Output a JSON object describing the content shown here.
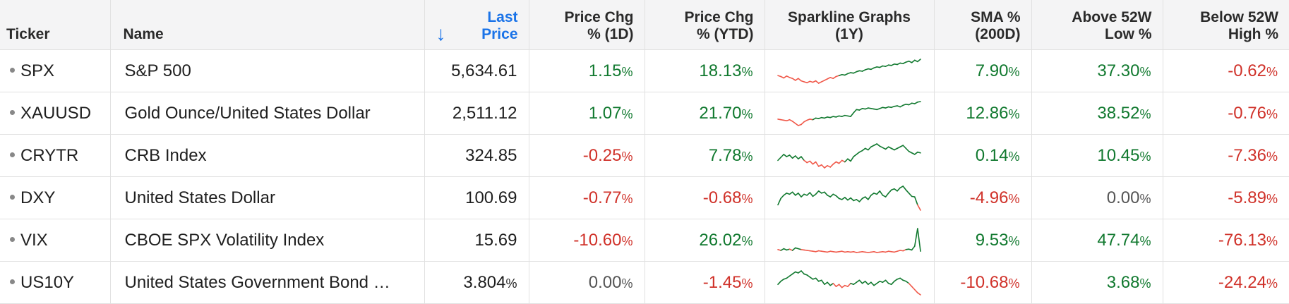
{
  "columns": [
    {
      "key": "ticker",
      "label": "Ticker"
    },
    {
      "key": "name",
      "label": "Name"
    },
    {
      "key": "last",
      "label_line1": "Last",
      "label_line2": "Price",
      "sort_icon": "arrow-down-icon"
    },
    {
      "key": "chg1d",
      "label_line1": "Price Chg",
      "label_line2": "% (1D)"
    },
    {
      "key": "chgytd",
      "label_line1": "Price Chg",
      "label_line2": "% (YTD)"
    },
    {
      "key": "spark",
      "label_line1": "Sparkline Graphs",
      "label_line2": "(1Y)"
    },
    {
      "key": "sma",
      "label_line1": "SMA %",
      "label_line2": "(200D)"
    },
    {
      "key": "above",
      "label_line1": "Above 52W",
      "label_line2": "Low %"
    },
    {
      "key": "below",
      "label_line1": "Below 52W",
      "label_line2": "High %"
    }
  ],
  "percent_sign": "%",
  "colors": {
    "positive": "#11792f",
    "negative": "#d0322a",
    "neutral": "#555555",
    "sort_accent": "#1a73e8"
  },
  "rows": [
    {
      "ticker": "SPX",
      "name": "S&P 500",
      "last": "5,634.61",
      "last_pct": false,
      "chg1d": "1.15",
      "chg1d_tone": "pos",
      "chgytd": "18.13",
      "chgytd_tone": "pos",
      "sma": "7.90",
      "sma_tone": "pos",
      "above": "37.30",
      "above_tone": "pos",
      "below": "-0.62",
      "below_tone": "neg",
      "spark": [
        40,
        38,
        35,
        39,
        36,
        34,
        30,
        34,
        29,
        27,
        25,
        28,
        26,
        29,
        24,
        27,
        30,
        33,
        36,
        34,
        38,
        40,
        42,
        41,
        44,
        46,
        45,
        48,
        50,
        49,
        52,
        54,
        53,
        56,
        58,
        57,
        60,
        59,
        62,
        61,
        64,
        63,
        66,
        65,
        68,
        70,
        67,
        72,
        69,
        74
      ]
    },
    {
      "ticker": "XAUUSD",
      "name": "Gold Ounce/United States Dollar",
      "last": "2,511.12",
      "last_pct": false,
      "chg1d": "1.07",
      "chg1d_tone": "pos",
      "chgytd": "21.70",
      "chgytd_tone": "pos",
      "sma": "12.86",
      "sma_tone": "pos",
      "above": "38.52",
      "above_tone": "pos",
      "below": "-0.76",
      "below_tone": "neg",
      "spark": [
        38,
        37,
        36,
        35,
        37,
        34,
        30,
        26,
        28,
        33,
        36,
        38,
        37,
        40,
        39,
        41,
        40,
        42,
        41,
        43,
        42,
        44,
        43,
        45,
        44,
        43,
        50,
        56,
        55,
        58,
        57,
        59,
        58,
        57,
        56,
        58,
        60,
        59,
        61,
        60,
        62,
        63,
        61,
        64,
        66,
        65,
        68,
        67,
        70,
        71
      ]
    },
    {
      "ticker": "CRYTR",
      "name": "CRB Index",
      "last": "324.85",
      "last_pct": false,
      "chg1d": "-0.25",
      "chg1d_tone": "neg",
      "chgytd": "7.78",
      "chgytd_tone": "pos",
      "sma": "0.14",
      "sma_tone": "pos",
      "above": "10.45",
      "above_tone": "pos",
      "below": "-7.36",
      "below_tone": "neg",
      "spark": [
        50,
        54,
        58,
        55,
        57,
        53,
        56,
        52,
        55,
        50,
        47,
        49,
        45,
        48,
        42,
        44,
        40,
        43,
        41,
        45,
        48,
        46,
        50,
        48,
        52,
        49,
        55,
        58,
        61,
        63,
        66,
        64,
        68,
        70,
        72,
        69,
        67,
        65,
        68,
        66,
        64,
        66,
        68,
        70,
        66,
        62,
        60,
        58,
        61,
        60
      ]
    },
    {
      "ticker": "DXY",
      "name": "United States Dollar",
      "last": "100.69",
      "last_pct": false,
      "chg1d": "-0.77",
      "chg1d_tone": "neg",
      "chgytd": "-0.68",
      "chgytd_tone": "neg",
      "sma": "-4.96",
      "sma_tone": "neg",
      "above": "0.00",
      "above_tone": "neu",
      "below": "-5.89",
      "below_tone": "neg",
      "spark": [
        40,
        52,
        58,
        62,
        60,
        64,
        58,
        62,
        55,
        60,
        58,
        63,
        56,
        60,
        66,
        62,
        64,
        58,
        55,
        60,
        57,
        52,
        50,
        54,
        49,
        53,
        48,
        50,
        46,
        52,
        55,
        50,
        58,
        62,
        60,
        66,
        58,
        55,
        62,
        68,
        70,
        66,
        72,
        75,
        68,
        62,
        56,
        55,
        40,
        30
      ]
    },
    {
      "ticker": "VIX",
      "name": "CBOE SPX Volatility Index",
      "last": "15.69",
      "last_pct": false,
      "chg1d": "-10.60",
      "chg1d_tone": "neg",
      "chgytd": "26.02",
      "chgytd_tone": "pos",
      "sma": "9.53",
      "sma_tone": "pos",
      "above": "47.74",
      "above_tone": "pos",
      "below": "-76.13",
      "below_tone": "neg",
      "spark": [
        32,
        30,
        34,
        31,
        33,
        30,
        36,
        34,
        32,
        31,
        30,
        29,
        28,
        27,
        29,
        28,
        27,
        26,
        28,
        27,
        26,
        27,
        28,
        26,
        27,
        26,
        27,
        25,
        26,
        27,
        26,
        25,
        26,
        27,
        25,
        26,
        27,
        26,
        28,
        27,
        26,
        28,
        30,
        29,
        32,
        33,
        31,
        40,
        82,
        28
      ]
    },
    {
      "ticker": "US10Y",
      "name": "United States Government Bond …",
      "last": "3.804",
      "last_pct": true,
      "chg1d": "0.00",
      "chg1d_tone": "neu",
      "chgytd": "-1.45",
      "chgytd_tone": "neg",
      "sma": "-10.68",
      "sma_tone": "neg",
      "above": "3.68",
      "above_tone": "pos",
      "below": "-24.24",
      "below_tone": "neg",
      "spark": [
        50,
        56,
        60,
        62,
        66,
        70,
        74,
        72,
        76,
        70,
        68,
        64,
        60,
        62,
        56,
        58,
        50,
        54,
        48,
        52,
        46,
        50,
        44,
        48,
        46,
        52,
        50,
        54,
        58,
        52,
        56,
        50,
        54,
        48,
        52,
        56,
        54,
        58,
        52,
        50,
        56,
        60,
        62,
        58,
        56,
        52,
        46,
        40,
        34,
        30
      ]
    }
  ]
}
